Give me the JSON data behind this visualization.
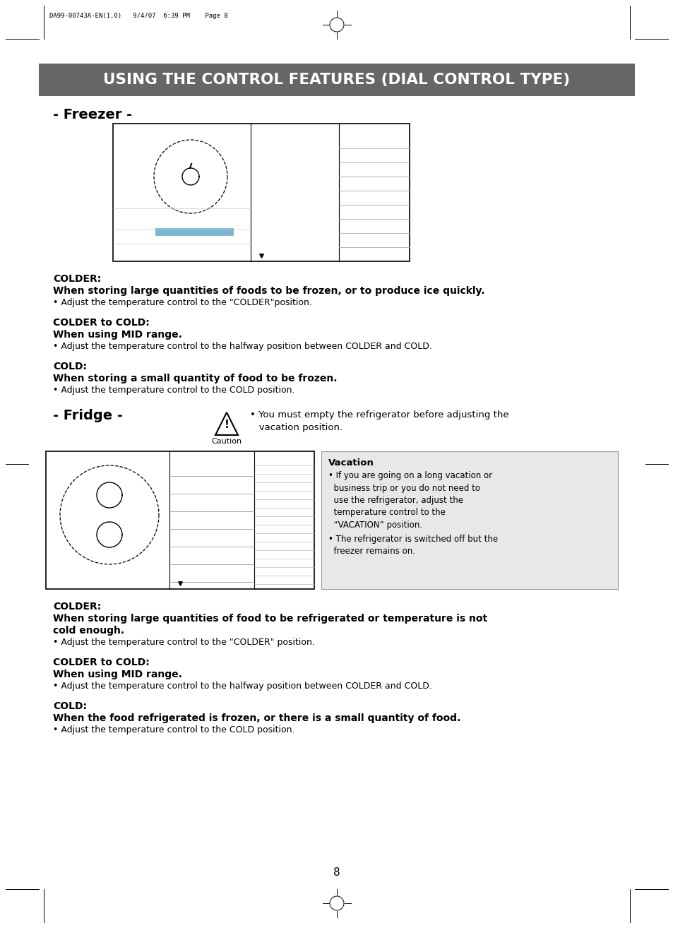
{
  "bg_color": "#ffffff",
  "header_text": "DA99-00743A-EN(1.0)   9/4/07  6:39 PM    Page 8",
  "title_bg": "#666666",
  "title_text": "USING THE CONTROL FEATURES (DIAL CONTROL TYPE)",
  "title_color": "#ffffff",
  "freezer_label": "- Freezer -",
  "fridge_label": "- Fridge -",
  "colder_label1": "COLDER:",
  "colder_bold1": "When storing large quantities of foods to be frozen, or to produce ice quickly.",
  "colder_bullet1": "• Adjust the temperature control to the \"COLDER\"position.",
  "colder_mid_label1": "COLDER to COLD:",
  "colder_mid_bold1": "When using MID range.",
  "colder_mid_bullet1": "• Adjust the temperature control to the halfway position between COLDER and COLD.",
  "cold_label1": "COLD:",
  "cold_bold1": "When storing a small quantity of food to be frozen.",
  "cold_bullet1": "• Adjust the temperature control to the COLD position.",
  "caution_text": "Caution",
  "caution_bullet": "• You must empty the refrigerator before adjusting the\n   vacation position.",
  "vacation_title": "Vacation",
  "vacation_text1": "• If you are going on a long vacation or\n  business trip or you do not need to\n  use the refrigerator, adjust the\n  temperature control to the\n  “VACATION” position.",
  "vacation_text2": "• The refrigerator is switched off but the\n  freezer remains on.",
  "colder_label2": "COLDER:",
  "colder_bold2a": "When storing large quantities of food to be refrigerated or temperature is not",
  "colder_bold2b": "cold enough.",
  "colder_bullet2": "• Adjust the temperature control to the \"COLDER\" position.",
  "colder_mid_label2": "COLDER to COLD:",
  "colder_mid_bold2": "When using MID range.",
  "colder_mid_bullet2": "• Adjust the temperature control to the halfway position between COLDER and COLD.",
  "cold_label2": "COLD:",
  "cold_bold2": "When the food refrigerated is frozen, or there is a small quantity of food.",
  "cold_bullet2": "• Adjust the temperature control to the COLD position.",
  "page_num": "8"
}
